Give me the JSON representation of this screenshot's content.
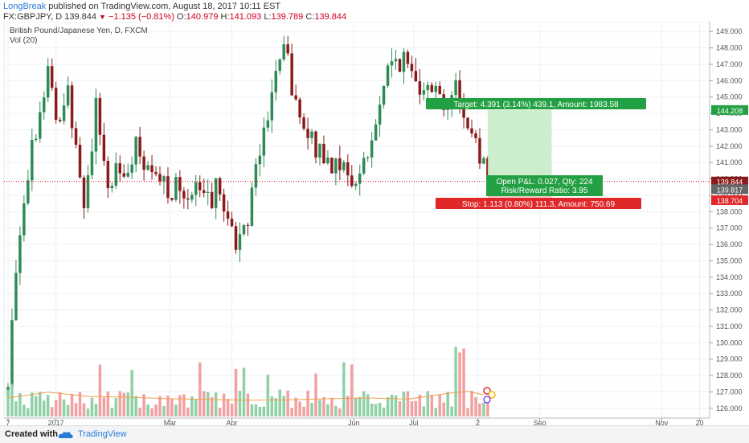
{
  "header": {
    "author": "LongBreak",
    "published": "published on TradingView.com, August 18, 2017 10:11 EST",
    "symbol": "FX:GBPJPY, D",
    "last": "139.844",
    "change": "−1.135 (−0.81%)",
    "open_label": "O:",
    "open": "140.979",
    "high_label": "H:",
    "high": "141.093",
    "low_label": "L:",
    "low": "139.789",
    "close_label": "C:",
    "close": "139.844"
  },
  "legend": {
    "title": "British Pound/Japanese Yen, D, FXCM",
    "volume": "Vol (20)"
  },
  "footer": {
    "created_with": "Created with",
    "brand": "TradingView"
  },
  "colors": {
    "up": "#2e8b57",
    "down": "#8b1a1a",
    "vol_up": "#8fd0a5",
    "vol_down": "#f2a0a0",
    "ma": "#f0a050",
    "target": "#23a043",
    "stop": "#e0282a",
    "accent": "#2a7bd8"
  },
  "chart_data": {
    "type": "candlestick",
    "title": "British Pound/Japanese Yen, D, FXCM",
    "ylim": [
      125.4,
      149.6
    ],
    "y_ticks": [
      126,
      127,
      128,
      129,
      130,
      131,
      132,
      133,
      134,
      135,
      136,
      137,
      138,
      139,
      140,
      141,
      142,
      143,
      144,
      145,
      146,
      147,
      148,
      149
    ],
    "x_ticks": [
      {
        "label": "7",
        "day": 0
      },
      {
        "label": "2017",
        "day": 24
      },
      {
        "label": "Mar",
        "day": 81
      },
      {
        "label": "Apr",
        "day": 112
      },
      {
        "label": "Jun",
        "day": 173
      },
      {
        "label": "Jul",
        "day": 203
      },
      {
        "label": "2",
        "day": 235
      },
      {
        "label": "Sep",
        "day": 266
      },
      {
        "label": "Nov",
        "day": 327
      },
      {
        "label": "20",
        "day": 346
      }
    ],
    "x_range": [
      -2,
      351
    ],
    "price_path": [
      [
        0,
        127.0
      ],
      [
        3,
        133.5
      ],
      [
        7,
        138.5
      ],
      [
        12,
        142.0
      ],
      [
        17,
        145.0
      ],
      [
        21,
        146.8
      ],
      [
        25,
        142.5
      ],
      [
        30,
        145.5
      ],
      [
        35,
        141.5
      ],
      [
        38,
        138.3
      ],
      [
        44,
        144.3
      ],
      [
        50,
        139.5
      ],
      [
        55,
        141.0
      ],
      [
        59,
        140.4
      ],
      [
        64,
        141.8
      ],
      [
        69,
        140.3
      ],
      [
        74,
        139.8
      ],
      [
        80,
        139.5
      ],
      [
        85,
        139.3
      ],
      [
        90,
        139.4
      ],
      [
        95,
        139.2
      ],
      [
        100,
        138.6
      ],
      [
        105,
        139.5
      ],
      [
        110,
        137.8
      ],
      [
        114,
        136.2
      ],
      [
        118,
        136.8
      ],
      [
        122,
        139.0
      ],
      [
        127,
        143.0
      ],
      [
        132,
        145.0
      ],
      [
        135,
        147.2
      ],
      [
        139,
        147.5
      ],
      [
        143,
        145.0
      ],
      [
        148,
        142.8
      ],
      [
        153,
        142.0
      ],
      [
        157,
        141.8
      ],
      [
        161,
        140.8
      ],
      [
        165,
        141.5
      ],
      [
        170,
        139.8
      ],
      [
        173,
        139.8
      ],
      [
        178,
        141.0
      ],
      [
        183,
        142.5
      ],
      [
        187,
        145.5
      ],
      [
        191,
        146.9
      ],
      [
        196,
        147.3
      ],
      [
        202,
        146.5
      ],
      [
        206,
        145.9
      ],
      [
        210,
        146.3
      ],
      [
        214,
        145.4
      ],
      [
        219,
        144.6
      ],
      [
        224,
        145.6
      ],
      [
        228,
        144.0
      ],
      [
        232,
        142.4
      ],
      [
        235,
        141.8
      ],
      [
        238,
        141.6
      ],
      [
        240,
        139.84
      ]
    ],
    "volume_range": [
      0,
      25
    ],
    "volume_ma": [
      [
        0,
        4.8
      ],
      [
        20,
        6.3
      ],
      [
        40,
        5.2
      ],
      [
        60,
        5.0
      ],
      [
        80,
        4.6
      ],
      [
        100,
        4.4
      ],
      [
        120,
        4.2
      ],
      [
        140,
        4.3
      ],
      [
        160,
        4.6
      ],
      [
        180,
        4.8
      ],
      [
        200,
        4.5
      ],
      [
        220,
        6.0
      ],
      [
        230,
        6.5
      ],
      [
        238,
        5.6
      ]
    ],
    "position": {
      "entry": 139.817,
      "target": 144.208,
      "stop": 138.704,
      "start_day": 240,
      "end_day": 272,
      "target_label": "Target: 4.391 (3.14%) 439.1, Amount: 1983.58",
      "pnl_label": "Open P&L: 0.027, Qty: 224",
      "rr_label": "Risk/Reward Ratio: 3.95",
      "stop_label": "Stop: 1.113 (0.80%) 111.3, Amount: 750.69"
    },
    "price_labels": [
      {
        "value": "144.208",
        "price": 144.208,
        "color": "#23a043"
      },
      {
        "value": "139.844",
        "price": 139.844,
        "color": "#8b1a1a"
      },
      {
        "value": "139.817",
        "price": 139.817,
        "color": "#666666"
      },
      {
        "value": "138.704",
        "price": 138.704,
        "color": "#e0282a"
      }
    ],
    "last_price": 139.844,
    "grid": true
  }
}
